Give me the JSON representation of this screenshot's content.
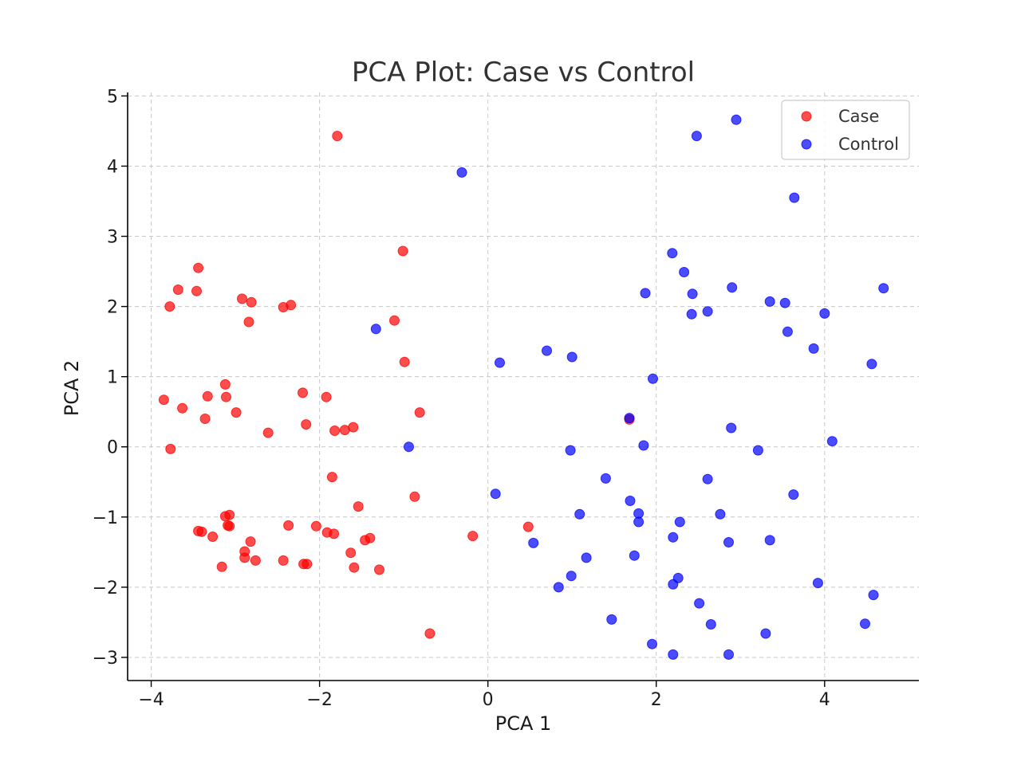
{
  "chart_data": {
    "type": "scatter",
    "title": "PCA Plot: Case vs Control",
    "xlabel": "PCA 1",
    "ylabel": "PCA 2",
    "xlim": [
      -4.28,
      5.12
    ],
    "ylim": [
      -3.33,
      5.05
    ],
    "xticks": [
      -4,
      -2,
      0,
      2,
      4
    ],
    "xtick_labels": [
      "−4",
      "−2",
      "0",
      "2",
      "4"
    ],
    "yticks": [
      -3,
      -2,
      -1,
      0,
      1,
      2,
      3,
      4,
      5
    ],
    "ytick_labels": [
      "−3",
      "−2",
      "−1",
      "0",
      "1",
      "2",
      "3",
      "4",
      "5"
    ],
    "grid": true,
    "legend_position": "top-right",
    "series": [
      {
        "name": "Case",
        "color": "#ff0000",
        "points": [
          [
            -1.79,
            4.43
          ],
          [
            -1.01,
            2.79
          ],
          [
            -3.44,
            2.55
          ],
          [
            -3.68,
            2.24
          ],
          [
            -3.46,
            2.22
          ],
          [
            -3.78,
            2.0
          ],
          [
            -2.92,
            2.11
          ],
          [
            -2.81,
            2.06
          ],
          [
            -2.43,
            1.99
          ],
          [
            -2.34,
            2.02
          ],
          [
            -2.84,
            1.78
          ],
          [
            -1.11,
            1.8
          ],
          [
            -0.99,
            1.21
          ],
          [
            -3.12,
            0.89
          ],
          [
            -3.11,
            0.71
          ],
          [
            -3.33,
            0.72
          ],
          [
            -2.99,
            0.49
          ],
          [
            -3.85,
            0.67
          ],
          [
            -3.63,
            0.55
          ],
          [
            -3.36,
            0.4
          ],
          [
            -2.61,
            0.2
          ],
          [
            -2.2,
            0.77
          ],
          [
            -1.92,
            0.71
          ],
          [
            -2.16,
            0.32
          ],
          [
            -0.81,
            0.49
          ],
          [
            -1.82,
            0.23
          ],
          [
            -1.7,
            0.24
          ],
          [
            -1.6,
            0.28
          ],
          [
            -3.77,
            -0.03
          ],
          [
            -1.85,
            -0.43
          ],
          [
            -1.54,
            -0.85
          ],
          [
            -0.87,
            -0.71
          ],
          [
            -3.12,
            -0.99
          ],
          [
            -3.07,
            -0.97
          ],
          [
            -3.09,
            -1.12
          ],
          [
            -3.07,
            -1.13
          ],
          [
            -3.44,
            -1.2
          ],
          [
            -3.4,
            -1.21
          ],
          [
            -3.27,
            -1.28
          ],
          [
            -2.37,
            -1.12
          ],
          [
            -2.04,
            -1.13
          ],
          [
            -1.91,
            -1.22
          ],
          [
            -1.83,
            -1.24
          ],
          [
            -1.46,
            -1.33
          ],
          [
            -1.4,
            -1.3
          ],
          [
            -2.82,
            -1.35
          ],
          [
            -2.89,
            -1.49
          ],
          [
            -2.89,
            -1.58
          ],
          [
            -2.76,
            -1.62
          ],
          [
            -3.16,
            -1.71
          ],
          [
            -2.43,
            -1.62
          ],
          [
            -2.19,
            -1.67
          ],
          [
            -2.15,
            -1.67
          ],
          [
            -1.63,
            -1.51
          ],
          [
            -1.59,
            -1.72
          ],
          [
            -1.29,
            -1.75
          ],
          [
            -0.69,
            -2.66
          ],
          [
            -0.18,
            -1.27
          ],
          [
            0.48,
            -1.14
          ],
          [
            1.68,
            0.39
          ]
        ]
      },
      {
        "name": "Control",
        "color": "#0000ff",
        "points": [
          [
            2.95,
            4.66
          ],
          [
            2.48,
            4.43
          ],
          [
            -0.31,
            3.91
          ],
          [
            3.64,
            3.55
          ],
          [
            2.19,
            2.76
          ],
          [
            2.33,
            2.49
          ],
          [
            1.87,
            2.19
          ],
          [
            2.43,
            2.18
          ],
          [
            2.9,
            2.27
          ],
          [
            4.7,
            2.26
          ],
          [
            3.35,
            2.07
          ],
          [
            3.53,
            2.05
          ],
          [
            2.61,
            1.93
          ],
          [
            2.42,
            1.89
          ],
          [
            4.0,
            1.9
          ],
          [
            3.56,
            1.64
          ],
          [
            -1.33,
            1.68
          ],
          [
            0.7,
            1.37
          ],
          [
            1.0,
            1.28
          ],
          [
            0.14,
            1.2
          ],
          [
            3.87,
            1.4
          ],
          [
            4.56,
            1.18
          ],
          [
            1.96,
            0.97
          ],
          [
            1.68,
            0.41
          ],
          [
            2.89,
            0.27
          ],
          [
            -0.94,
            0.0
          ],
          [
            1.85,
            0.02
          ],
          [
            4.09,
            0.08
          ],
          [
            0.98,
            -0.05
          ],
          [
            3.21,
            -0.05
          ],
          [
            1.4,
            -0.45
          ],
          [
            2.61,
            -0.46
          ],
          [
            0.09,
            -0.67
          ],
          [
            3.63,
            -0.68
          ],
          [
            1.69,
            -0.77
          ],
          [
            1.09,
            -0.96
          ],
          [
            1.79,
            -0.95
          ],
          [
            2.76,
            -0.96
          ],
          [
            1.79,
            -1.07
          ],
          [
            2.28,
            -1.07
          ],
          [
            0.54,
            -1.37
          ],
          [
            2.2,
            -1.29
          ],
          [
            2.86,
            -1.36
          ],
          [
            3.35,
            -1.33
          ],
          [
            1.17,
            -1.58
          ],
          [
            1.74,
            -1.55
          ],
          [
            0.99,
            -1.84
          ],
          [
            0.84,
            -2.0
          ],
          [
            2.26,
            -1.87
          ],
          [
            2.2,
            -1.96
          ],
          [
            3.92,
            -1.94
          ],
          [
            2.51,
            -2.23
          ],
          [
            1.47,
            -2.46
          ],
          [
            2.65,
            -2.53
          ],
          [
            4.58,
            -2.11
          ],
          [
            4.48,
            -2.52
          ],
          [
            1.95,
            -2.81
          ],
          [
            2.2,
            -2.96
          ],
          [
            2.86,
            -2.96
          ],
          [
            3.3,
            -2.66
          ]
        ]
      }
    ]
  }
}
